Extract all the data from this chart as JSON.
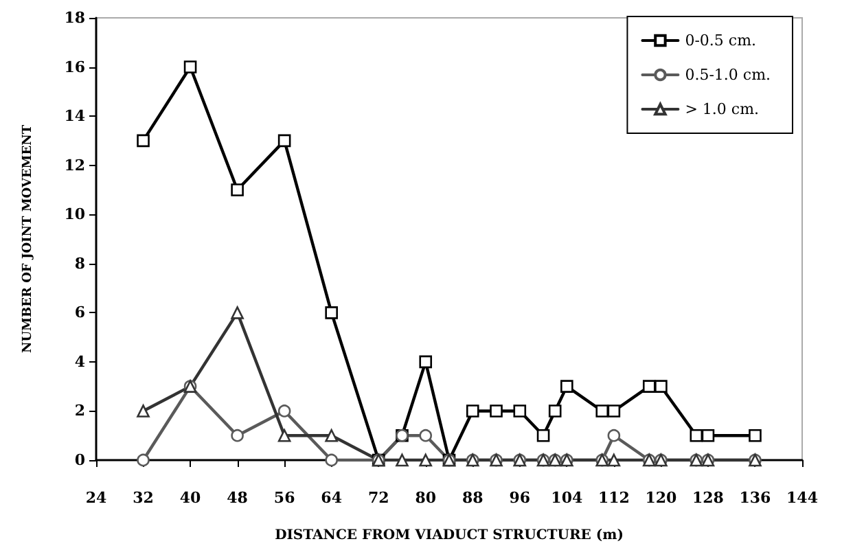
{
  "chart_data": {
    "type": "line",
    "xlabel": "DISTANCE FROM VIADUCT STRUCTURE (m)",
    "ylabel": "NUMBER OF JOINT MOVEMENT",
    "x": [
      32,
      40,
      48,
      56,
      64,
      72,
      76,
      80,
      84,
      88,
      92,
      96,
      100,
      102,
      104,
      110,
      112,
      118,
      120,
      126,
      128,
      136
    ],
    "series": [
      {
        "name": "0-0.5 cm.",
        "color": "#000000",
        "marker": "square",
        "values": [
          13,
          16,
          11,
          13,
          6,
          0,
          1,
          4,
          0,
          2,
          2,
          2,
          1,
          2,
          3,
          2,
          2,
          3,
          3,
          1,
          1,
          1
        ]
      },
      {
        "name": "0.5-1.0 cm.",
        "color": "#5a5a5a",
        "marker": "circle",
        "values": [
          0,
          3,
          1,
          2,
          0,
          0,
          1,
          1,
          0,
          0,
          0,
          0,
          0,
          0,
          0,
          0,
          1,
          0,
          0,
          0,
          0,
          0
        ]
      },
      {
        "name": "> 1.0 cm.",
        "color": "#333333",
        "marker": "triangle",
        "values": [
          2,
          3,
          6,
          1,
          1,
          0,
          0,
          0,
          0,
          0,
          0,
          0,
          0,
          0,
          0,
          0,
          0,
          0,
          0,
          0,
          0,
          0
        ]
      }
    ],
    "xlim": [
      24,
      144
    ],
    "xticks": [
      24,
      32,
      40,
      48,
      56,
      64,
      72,
      80,
      88,
      96,
      104,
      112,
      120,
      128,
      136,
      144
    ],
    "ylim": [
      0,
      18
    ],
    "yticks": [
      0,
      2,
      4,
      6,
      8,
      10,
      12,
      14,
      16,
      18
    ],
    "grid": false,
    "legend": "top right",
    "line_style": "solid"
  }
}
